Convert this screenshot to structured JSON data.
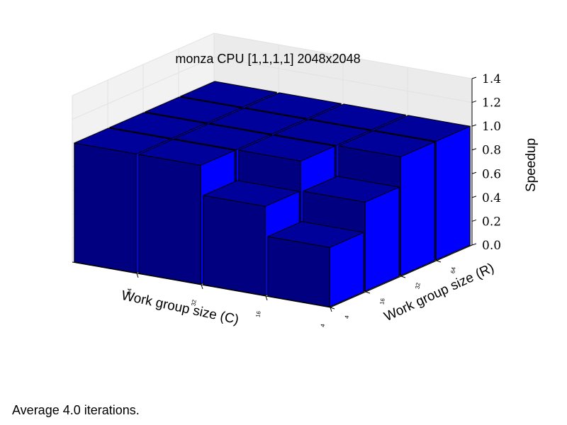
{
  "chart_data": {
    "type": "bar3d",
    "title": "monza CPU [1,1,1,1] 2048x2048",
    "xlabel": "Work group size (C)",
    "ylabel": "Work group size (R)",
    "zlabel": "Speedup",
    "x_categories": [
      "64",
      "32",
      "16",
      "4"
    ],
    "y_categories": [
      "4",
      "16",
      "32",
      "64"
    ],
    "zlim": [
      0.0,
      1.4
    ],
    "z_ticks": [
      "0.0",
      "0.2",
      "0.4",
      "0.6",
      "0.8",
      "1.0",
      "1.2",
      "1.4"
    ],
    "values": [
      [
        1.0,
        1.0,
        1.0,
        1.0
      ],
      [
        1.0,
        1.0,
        1.0,
        1.0
      ],
      [
        0.75,
        1.0,
        1.0,
        1.0
      ],
      [
        0.5,
        0.75,
        1.0,
        1.0
      ]
    ],
    "bar_color": "#0000ff",
    "grid": true
  },
  "footnote": "Average 4.0 iterations."
}
